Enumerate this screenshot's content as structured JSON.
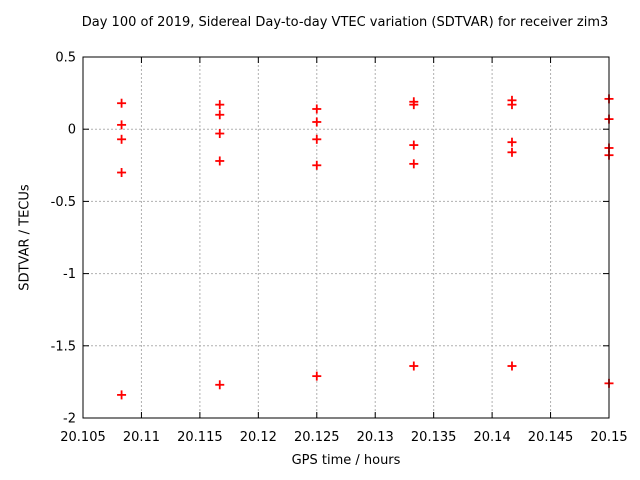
{
  "chart_data": {
    "type": "scatter",
    "title": "Day 100 of 2019, Sidereal Day-to-day VTEC variation (SDTVAR) for receiver zim3",
    "xlabel": "GPS time / hours",
    "ylabel": "SDTVAR / TECUs",
    "xlim": [
      20.105,
      20.15
    ],
    "ylim": [
      -2,
      0.5
    ],
    "xtick_values": [
      20.105,
      20.11,
      20.115,
      20.12,
      20.125,
      20.13,
      20.135,
      20.14,
      20.145,
      20.15
    ],
    "xtick_labels": [
      "20.105",
      "20.11",
      "20.115",
      "20.12",
      "20.125",
      "20.13",
      "20.135",
      "20.14",
      "20.145",
      "20.15"
    ],
    "ytick_values": [
      0.5,
      0,
      -0.5,
      -1,
      -1.5,
      -2
    ],
    "ytick_labels": [
      "0.5",
      "0",
      "-0.5",
      "-1",
      "-1.5",
      "-2"
    ],
    "grid": true,
    "legend": "none",
    "marker": {
      "shape": "plus",
      "color": "#ff0000",
      "size": 9
    },
    "grid_color": "#b0b0b0",
    "axis_color": "#000000",
    "series": [
      {
        "name": "SDTVAR",
        "points": [
          [
            20.1083,
            0.18
          ],
          [
            20.1083,
            0.03
          ],
          [
            20.1083,
            -0.07
          ],
          [
            20.1083,
            -0.3
          ],
          [
            20.1083,
            -1.84
          ],
          [
            20.1167,
            0.17
          ],
          [
            20.1167,
            0.1
          ],
          [
            20.1167,
            -0.03
          ],
          [
            20.1167,
            -0.22
          ],
          [
            20.1167,
            -1.77
          ],
          [
            20.125,
            0.14
          ],
          [
            20.125,
            0.05
          ],
          [
            20.125,
            -0.07
          ],
          [
            20.125,
            -0.25
          ],
          [
            20.125,
            -1.71
          ],
          [
            20.1333,
            0.19
          ],
          [
            20.1333,
            0.17
          ],
          [
            20.1333,
            -0.11
          ],
          [
            20.1333,
            -0.24
          ],
          [
            20.1333,
            -1.64
          ],
          [
            20.1417,
            0.2
          ],
          [
            20.1417,
            0.17
          ],
          [
            20.1417,
            -0.09
          ],
          [
            20.1417,
            -0.16
          ],
          [
            20.1417,
            -1.64
          ],
          [
            20.15,
            0.21
          ],
          [
            20.15,
            0.07
          ],
          [
            20.15,
            -0.13
          ],
          [
            20.15,
            -0.18
          ],
          [
            20.15,
            -1.76
          ]
        ]
      }
    ]
  }
}
